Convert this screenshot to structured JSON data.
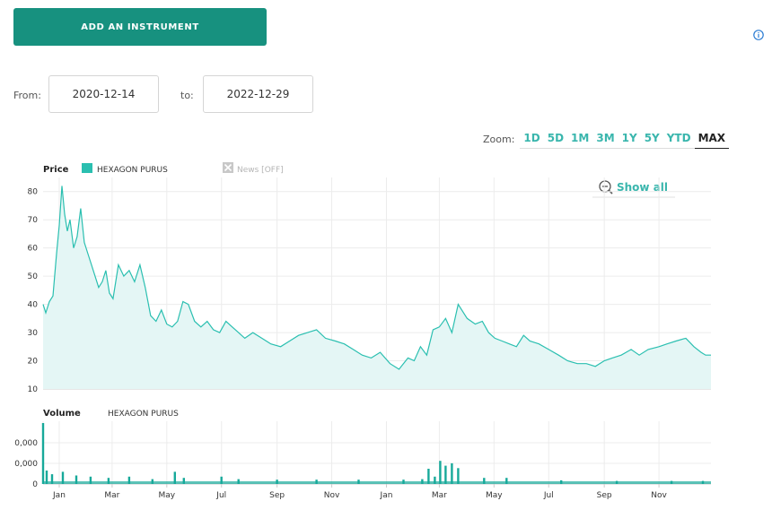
{
  "toolbar": {
    "add_label": "ADD AN INSTRUMENT"
  },
  "icons": {
    "info": "info-icon",
    "zoom_out": "zoom-out-icon",
    "news_toggle": "checkbox-x-icon"
  },
  "range": {
    "from_label": "From:",
    "from_value": "2020-12-14",
    "to_label": "to:",
    "to_value": "2022-12-29"
  },
  "zoom": {
    "label": "Zoom:",
    "buttons": [
      "1D",
      "5D",
      "1M",
      "3M",
      "1Y",
      "5Y",
      "YTD",
      "MAX"
    ],
    "active": "MAX"
  },
  "show_all_label": "Show all",
  "colors": {
    "accent": "#17917f",
    "series": "#2abfb0",
    "area_fill": "#e4f6f5",
    "zoom_link": "#3ab6ad"
  },
  "chart_data": [
    {
      "type": "area",
      "panel": "price",
      "title": "Price",
      "legend": [
        {
          "name": "HEXAGON PURUS",
          "color": "#2abfb0"
        },
        {
          "name": "News [OFF]",
          "color": "#bbbbbb"
        }
      ],
      "ylim": [
        10,
        85
      ],
      "yticks": [
        10,
        20,
        30,
        40,
        50,
        60,
        70,
        80
      ],
      "xlim": [
        "2020-12-14",
        "2022-12-29"
      ],
      "xticks": [
        "Jan",
        "Mar",
        "May",
        "Jul",
        "Sep",
        "Nov",
        "Jan",
        "Mar",
        "May",
        "Jul",
        "Sep",
        "Nov"
      ],
      "grid": true,
      "series": [
        {
          "name": "HEXAGON PURUS",
          "x": [
            "2020-12-14",
            "2020-12-17",
            "2020-12-21",
            "2020-12-25",
            "2020-12-29",
            "2021-01-01",
            "2021-01-04",
            "2021-01-07",
            "2021-01-10",
            "2021-01-13",
            "2021-01-17",
            "2021-01-21",
            "2021-01-25",
            "2021-01-29",
            "2021-02-02",
            "2021-02-06",
            "2021-02-10",
            "2021-02-14",
            "2021-02-18",
            "2021-02-22",
            "2021-02-26",
            "2021-03-02",
            "2021-03-08",
            "2021-03-14",
            "2021-03-20",
            "2021-03-26",
            "2021-04-01",
            "2021-04-07",
            "2021-04-13",
            "2021-04-19",
            "2021-04-25",
            "2021-05-01",
            "2021-05-07",
            "2021-05-13",
            "2021-05-19",
            "2021-05-25",
            "2021-06-01",
            "2021-06-08",
            "2021-06-15",
            "2021-06-22",
            "2021-06-29",
            "2021-07-06",
            "2021-07-13",
            "2021-07-20",
            "2021-07-27",
            "2021-08-05",
            "2021-08-15",
            "2021-08-25",
            "2021-09-05",
            "2021-09-15",
            "2021-09-25",
            "2021-10-05",
            "2021-10-15",
            "2021-10-25",
            "2021-11-05",
            "2021-11-15",
            "2021-11-25",
            "2021-12-05",
            "2021-12-15",
            "2021-12-25",
            "2022-01-05",
            "2022-01-15",
            "2022-01-25",
            "2022-02-01",
            "2022-02-08",
            "2022-02-15",
            "2022-02-22",
            "2022-03-01",
            "2022-03-08",
            "2022-03-15",
            "2022-03-22",
            "2022-04-01",
            "2022-04-10",
            "2022-04-18",
            "2022-04-25",
            "2022-05-02",
            "2022-05-10",
            "2022-05-18",
            "2022-05-26",
            "2022-06-03",
            "2022-06-10",
            "2022-06-20",
            "2022-07-01",
            "2022-07-12",
            "2022-07-22",
            "2022-08-02",
            "2022-08-12",
            "2022-08-22",
            "2022-09-01",
            "2022-09-10",
            "2022-09-20",
            "2022-10-01",
            "2022-10-10",
            "2022-10-20",
            "2022-11-01",
            "2022-11-10",
            "2022-11-20",
            "2022-12-01",
            "2022-12-10",
            "2022-12-18",
            "2022-12-23",
            "2022-12-29"
          ],
          "values": [
            40,
            37,
            41,
            43,
            58,
            68,
            82,
            72,
            66,
            70,
            60,
            64,
            74,
            62,
            58,
            54,
            50,
            46,
            48,
            52,
            44,
            42,
            54,
            50,
            52,
            48,
            54,
            46,
            36,
            34,
            38,
            33,
            32,
            34,
            41,
            40,
            34,
            32,
            34,
            31,
            30,
            34,
            32,
            30,
            28,
            30,
            28,
            26,
            25,
            27,
            29,
            30,
            31,
            28,
            27,
            26,
            24,
            22,
            21,
            23,
            19,
            17,
            21,
            20,
            25,
            22,
            31,
            32,
            35,
            30,
            40,
            35,
            33,
            34,
            30,
            28,
            27,
            26,
            25,
            29,
            27,
            26,
            24,
            22,
            20,
            19,
            19,
            18,
            20,
            21,
            22,
            24,
            22,
            24,
            25,
            26,
            27,
            28,
            25,
            23,
            22,
            22
          ]
        }
      ]
    },
    {
      "type": "bar",
      "panel": "volume",
      "title": "Volume",
      "legend": [
        {
          "name": "HEXAGON PURUS",
          "color": "#17a99a"
        }
      ],
      "ytick_labels": [
        "0",
        "0,000",
        "0,000"
      ],
      "grid": true,
      "series": [
        {
          "name": "HEXAGON PURUS",
          "x": [
            "2020-12-14",
            "2020-12-18",
            "2020-12-24",
            "2021-01-05",
            "2021-01-20",
            "2021-02-05",
            "2021-02-25",
            "2021-03-20",
            "2021-04-15",
            "2021-05-10",
            "2021-05-20",
            "2021-07-01",
            "2021-07-20",
            "2021-09-01",
            "2021-10-15",
            "2021-12-01",
            "2022-01-20",
            "2022-02-10",
            "2022-02-17",
            "2022-02-24",
            "2022-03-02",
            "2022-03-08",
            "2022-03-15",
            "2022-03-22",
            "2022-04-20",
            "2022-05-15",
            "2022-07-15",
            "2022-09-15",
            "2022-11-15",
            "2022-12-20"
          ],
          "values": [
            1.0,
            0.22,
            0.16,
            0.2,
            0.14,
            0.12,
            0.1,
            0.12,
            0.08,
            0.2,
            0.1,
            0.12,
            0.08,
            0.07,
            0.07,
            0.07,
            0.07,
            0.08,
            0.25,
            0.12,
            0.38,
            0.3,
            0.34,
            0.26,
            0.1,
            0.1,
            0.06,
            0.05,
            0.05,
            0.05
          ]
        }
      ]
    }
  ]
}
